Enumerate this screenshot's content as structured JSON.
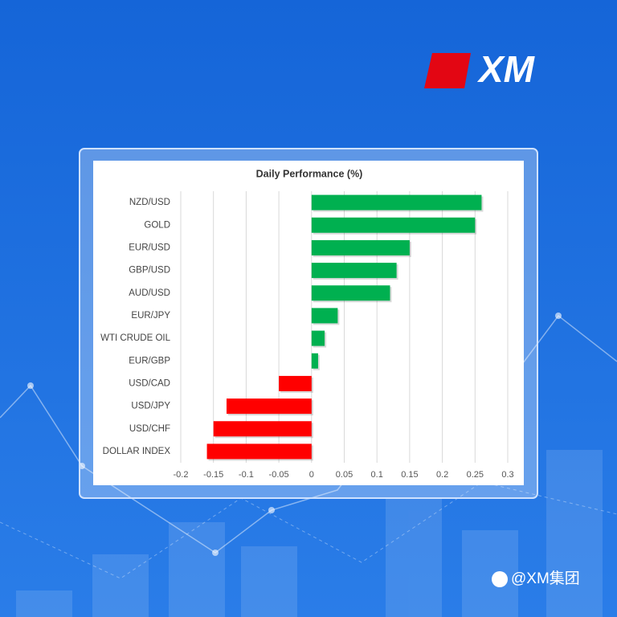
{
  "brand": "XM",
  "watermark": "@XM集团",
  "chart_data": {
    "type": "barh",
    "title": "Daily Performance (%)",
    "categories": [
      "NZD/USD",
      "GOLD",
      "EUR/USD",
      "GBP/USD",
      "AUD/USD",
      "EUR/JPY",
      "WTI CRUDE OIL",
      "EUR/GBP",
      "USD/CAD",
      "USD/JPY",
      "USD/CHF",
      "DOLLAR INDEX"
    ],
    "values": [
      0.26,
      0.25,
      0.15,
      0.13,
      0.12,
      0.04,
      0.02,
      0.01,
      -0.05,
      -0.13,
      -0.15,
      -0.16
    ],
    "colors": {
      "positive": "#00b050",
      "negative": "#ff0000"
    },
    "xlim": [
      -0.2,
      0.3
    ],
    "xticks": [
      -0.2,
      -0.15,
      -0.1,
      -0.05,
      0,
      0.05,
      0.1,
      0.15,
      0.2,
      0.25,
      0.3
    ],
    "grid": true
  }
}
